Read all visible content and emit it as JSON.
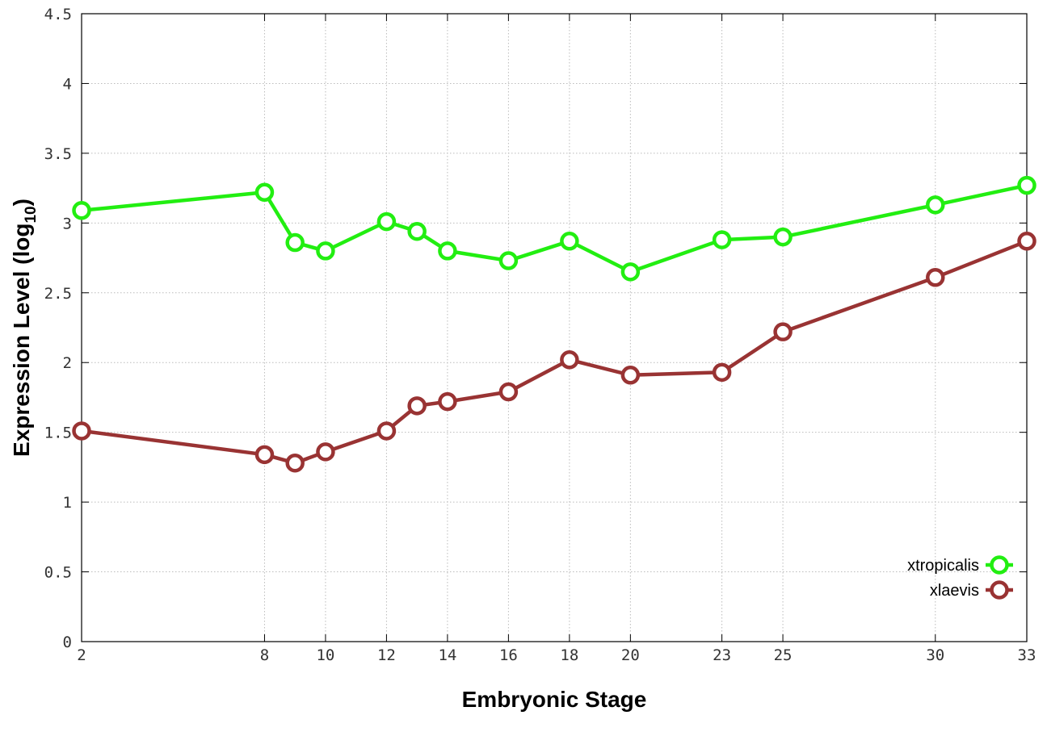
{
  "chart_data": {
    "type": "line",
    "title": "",
    "xlabel": "Embryonic Stage",
    "ylabel": "Expression Level (log",
    "ylabel_sub": "10",
    "ylabel_close": ")",
    "x": [
      2,
      8,
      9,
      10,
      12,
      13,
      14,
      16,
      18,
      20,
      23,
      25,
      30,
      33
    ],
    "xticks": [
      2,
      8,
      10,
      12,
      14,
      16,
      18,
      20,
      23,
      25,
      30,
      33
    ],
    "yticks": [
      "0",
      "0.5",
      "1",
      "1.5",
      "2",
      "2.5",
      "3",
      "3.5",
      "4",
      "4.5"
    ],
    "xlim": [
      2,
      33
    ],
    "ylim": [
      0,
      4.5
    ],
    "grid": true,
    "legend_position": "bottom-right",
    "series": [
      {
        "name": "xtropicalis",
        "color": "#22ee11",
        "values": [
          3.09,
          3.22,
          2.86,
          2.8,
          3.01,
          2.94,
          2.8,
          2.73,
          2.87,
          2.65,
          2.88,
          2.9,
          3.13,
          3.27
        ]
      },
      {
        "name": "xlaevis",
        "color": "#993333",
        "values": [
          1.51,
          1.34,
          1.28,
          1.36,
          1.51,
          1.69,
          1.72,
          1.79,
          2.02,
          1.91,
          1.93,
          2.22,
          2.61,
          2.87
        ]
      }
    ]
  }
}
